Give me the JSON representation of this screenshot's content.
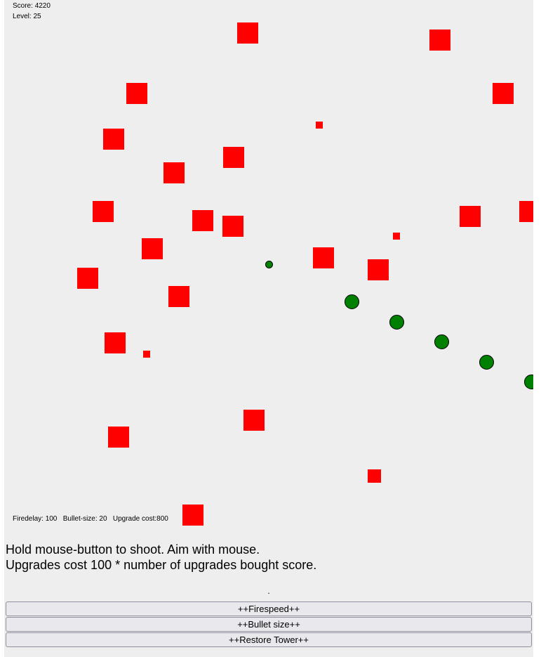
{
  "hud": {
    "score_label": "Score:",
    "score": 4220,
    "level_label": "Level:",
    "level": 25,
    "firedelay_label": "Firedelay:",
    "firedelay": 100,
    "bullet_size_label": "Bullet-size:",
    "bullet_size": 20,
    "upgrade_cost_label": "Upgrade cost:",
    "upgrade_cost": 800
  },
  "instructions": {
    "line1": "Hold mouse-button to shoot. Aim with mouse.",
    "line2": "Upgrades cost 100 * number of upgrades bought score."
  },
  "separator": ".",
  "buttons": {
    "firespeed": "++Firespeed++",
    "bullet_size": "++Bullet size++",
    "restore_tower": "++Restore Tower++"
  },
  "colors": {
    "enemy": "#ff0000",
    "bullet": "#008000",
    "background": "#eeeeee"
  },
  "entities": {
    "enemy_count": 28,
    "bullet_count": 6
  }
}
